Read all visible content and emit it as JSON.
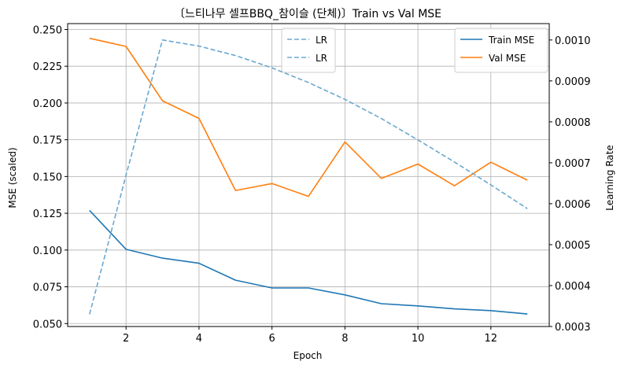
{
  "chart_data": {
    "type": "line",
    "title": "〔느티나무 셀프BBQ_참이슬 (단체)〕Train vs Val MSE",
    "xlabel": "Epoch",
    "ylabel": "MSE (scaled)",
    "y2label": "Learning Rate",
    "xlim": [
      0.4,
      13.6
    ],
    "ylim": [
      0.048,
      0.254
    ],
    "y2lim": [
      0.0003,
      0.00104
    ],
    "xticks": [
      2,
      4,
      6,
      8,
      10,
      12
    ],
    "yticks": [
      "0.050",
      "0.075",
      "0.100",
      "0.125",
      "0.150",
      "0.175",
      "0.200",
      "0.225",
      "0.250"
    ],
    "y2ticks": [
      "0.0003",
      "0.0004",
      "0.0005",
      "0.0006",
      "0.0007",
      "0.0008",
      "0.0009",
      "0.0010"
    ],
    "grid": true,
    "x": [
      1,
      2,
      3,
      4,
      5,
      6,
      7,
      8,
      9,
      10,
      11,
      12,
      13
    ],
    "series": [
      {
        "name": "Train MSE",
        "axis": "left",
        "color": "#1f77b4",
        "style": "solid",
        "values": [
          0.127,
          0.1005,
          0.0945,
          0.091,
          0.0795,
          0.0742,
          0.0742,
          0.0695,
          0.0635,
          0.062,
          0.06,
          0.0588,
          0.0565
        ]
      },
      {
        "name": "Val MSE",
        "axis": "left",
        "color": "#ff7f0e",
        "style": "solid",
        "values": [
          0.244,
          0.2385,
          0.2015,
          0.1895,
          0.1405,
          0.1452,
          0.1365,
          0.1735,
          0.1487,
          0.1585,
          0.1437,
          0.1597,
          0.1475
        ]
      },
      {
        "name": "LR",
        "axis": "right",
        "color": "#6ba8d0",
        "style": "dashed",
        "values": [
          0.00033,
          0.00067,
          0.001,
          0.000985,
          0.000962,
          0.000932,
          0.000896,
          0.000855,
          0.000808,
          0.000756,
          0.000702,
          0.000646,
          0.000588
        ]
      }
    ],
    "legends": [
      {
        "placement": "upper-center",
        "entries": [
          "LR",
          "LR"
        ]
      },
      {
        "placement": "upper-right",
        "entries": [
          "Train MSE",
          "Val MSE"
        ]
      }
    ]
  }
}
